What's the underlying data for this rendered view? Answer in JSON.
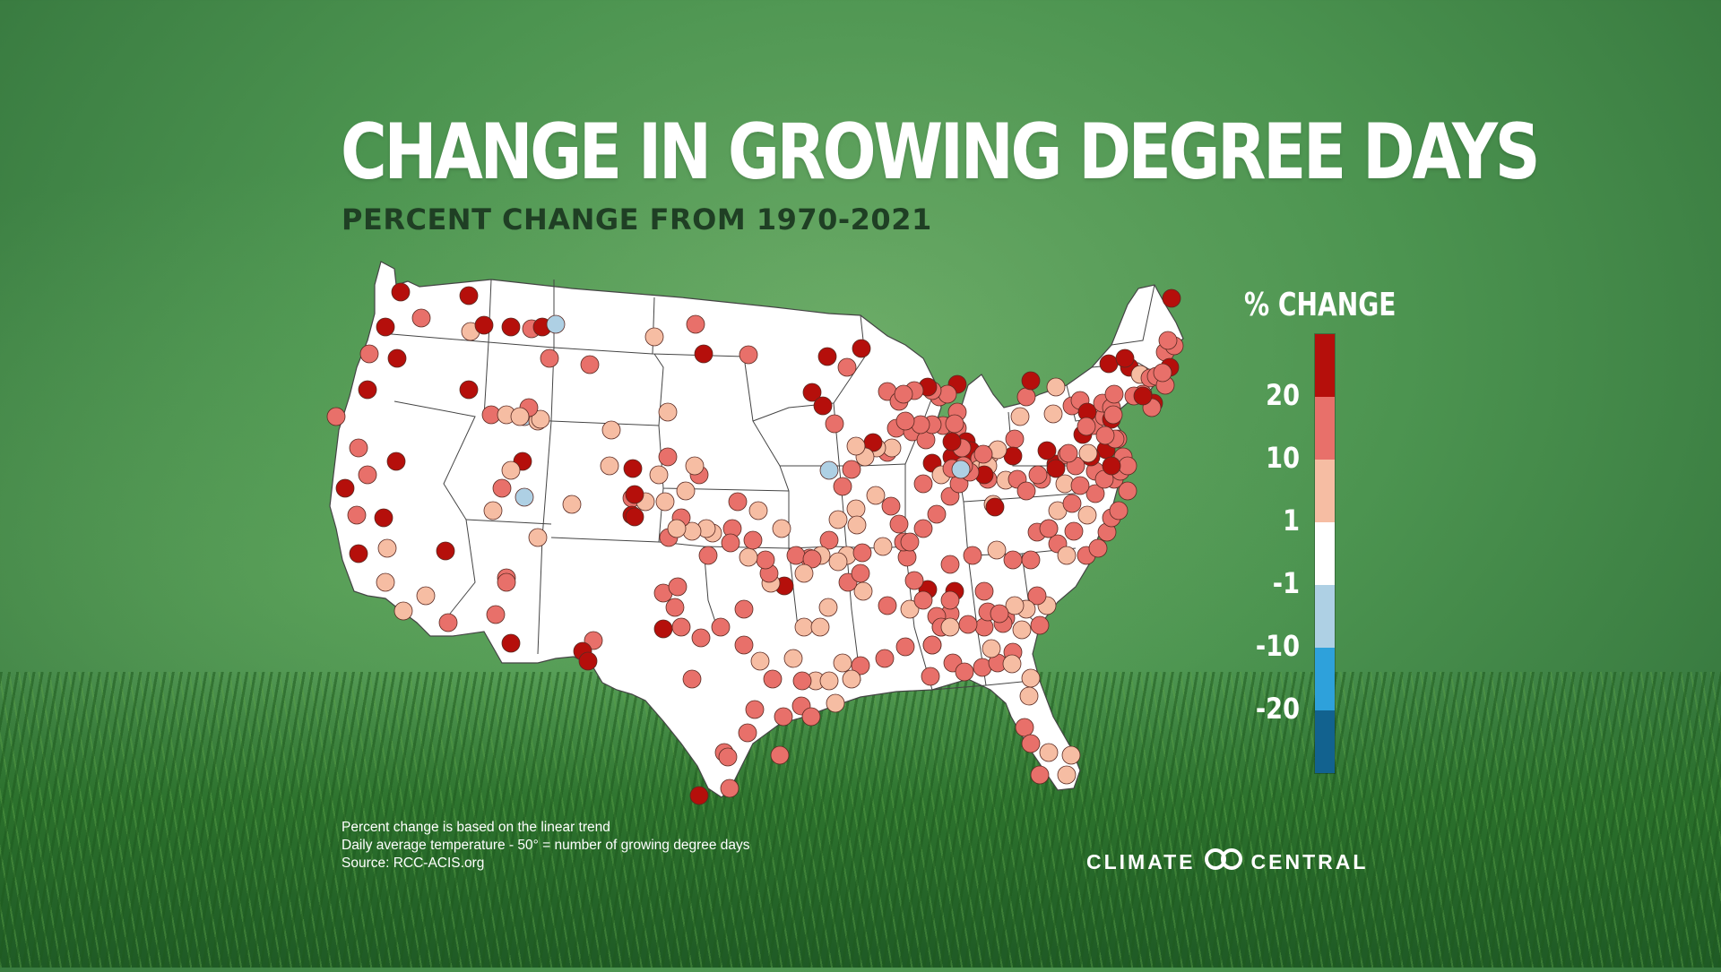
{
  "title": "CHANGE IN GROWING DEGREE DAYS",
  "subtitle": "PERCENT CHANGE FROM 1970-2021",
  "legend": {
    "title": "% CHANGE",
    "colors": [
      "#b50f0b",
      "#e8706a",
      "#f6bda3",
      "#ffffff",
      "#aed0e4",
      "#2ea1db",
      "#12628f"
    ],
    "labels": [
      "20",
      "10",
      "1",
      "-1",
      "-10",
      "-20"
    ]
  },
  "notes": [
    "Percent change is based on the linear trend",
    "Daily average temperature - 50° = number of growing degree days",
    "Source: RCC-ACIS.org"
  ],
  "brand": {
    "left": "CLIMATE",
    "right": "CENTRAL"
  },
  "colors": {
    "dark_red": "#b50f0b",
    "mid_red": "#e8706a",
    "light_red": "#f6bda3",
    "white": "#ffffff",
    "light_blue": "#aed0e4"
  }
}
